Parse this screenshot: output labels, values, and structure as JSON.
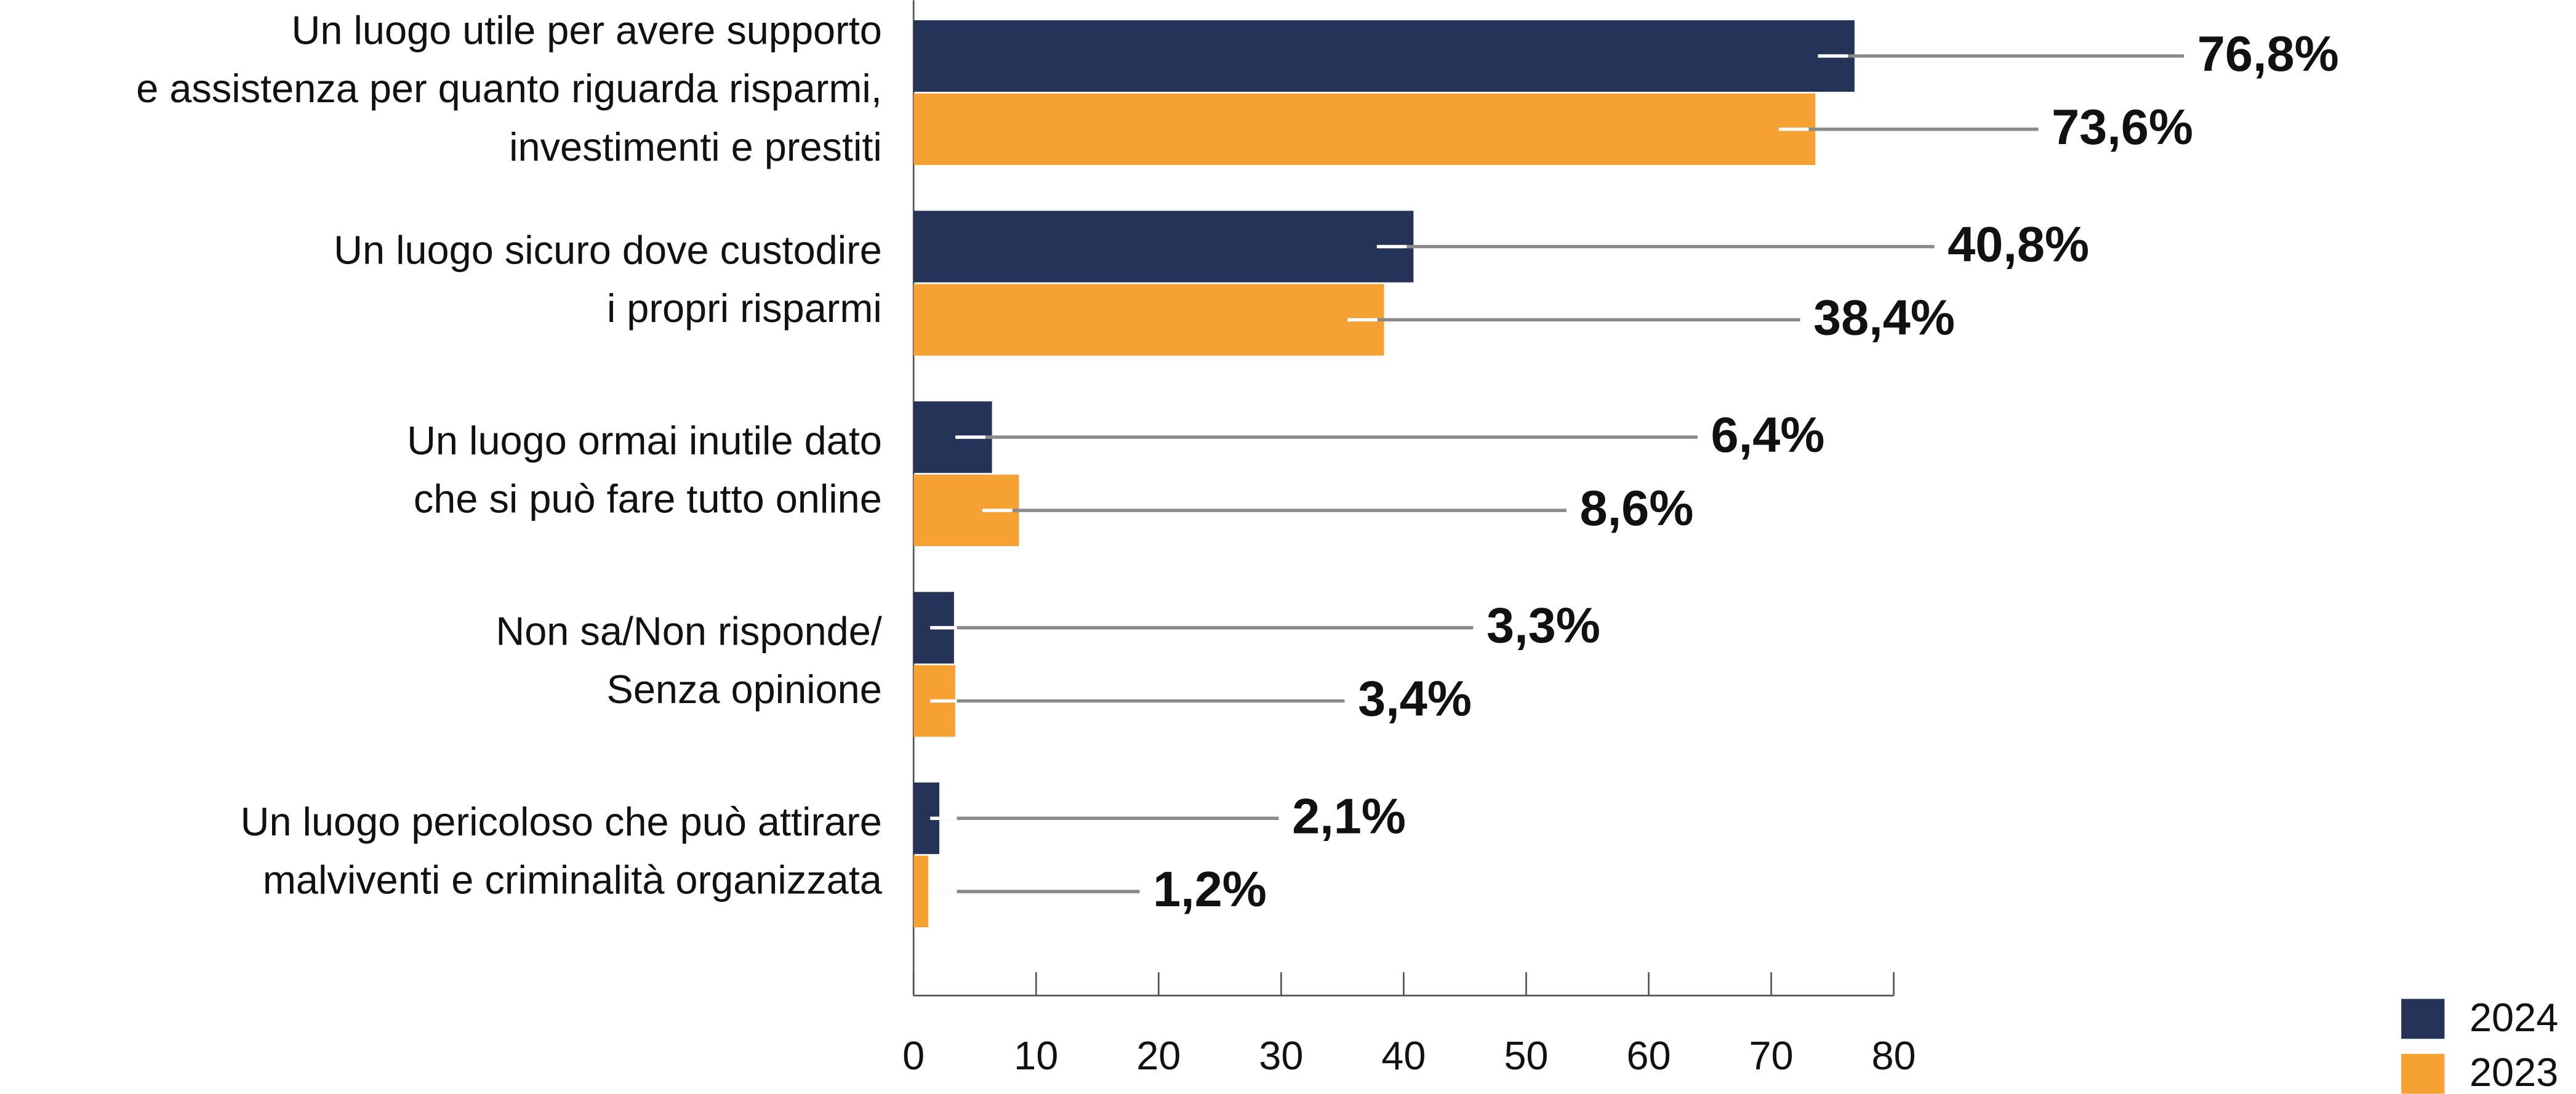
{
  "chart_data": {
    "type": "bar",
    "orientation": "horizontal",
    "categories": [
      [
        "Un luogo utile per avere supporto",
        "e assistenza per quanto riguarda risparmi,",
        "investimenti e prestiti"
      ],
      [
        "Un luogo sicuro dove custodire",
        "i propri risparmi"
      ],
      [
        "Un luogo ormai inutile dato",
        "che si può fare tutto online"
      ],
      [
        "Non sa/Non risponde/",
        "Senza opinione"
      ],
      [
        "Un luogo pericoloso che può attirare",
        "malviventi e criminalità organizzata"
      ]
    ],
    "series": [
      {
        "name": "2024",
        "color": "#253358",
        "values": [
          76.8,
          40.8,
          6.4,
          3.3,
          2.1
        ],
        "value_labels": [
          "76,8%",
          "40,8%",
          "6,4%",
          "3,3%",
          "2,1%"
        ]
      },
      {
        "name": "2023",
        "color": "#f5a133",
        "values": [
          73.6,
          38.4,
          8.6,
          3.4,
          1.2
        ],
        "value_labels": [
          "73,6%",
          "38,4%",
          "8,6%",
          "3,4%",
          "1,2%"
        ]
      }
    ],
    "xlim": [
      0,
      80
    ],
    "xticks": [
      0,
      10,
      20,
      30,
      40,
      50,
      60,
      70,
      80
    ],
    "legend": "bottom-right"
  }
}
